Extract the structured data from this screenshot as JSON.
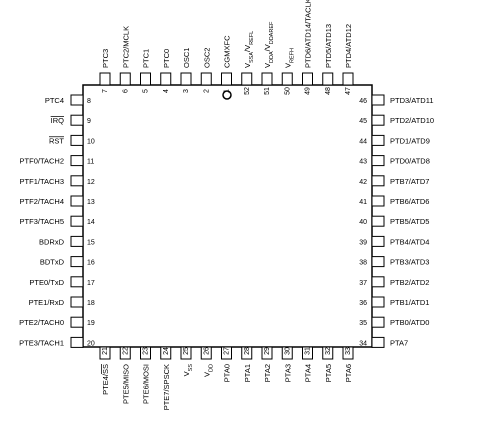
{
  "pins": {
    "top": [
      {
        "number": "7",
        "label": "PTC3"
      },
      {
        "number": "6",
        "label": "PTC2/MCLK"
      },
      {
        "number": "5",
        "label": "PTC1"
      },
      {
        "number": "4",
        "label": "PTC0"
      },
      {
        "number": "3",
        "label": "OSC1"
      },
      {
        "number": "2",
        "label": "OSC2"
      },
      {
        "number": "1",
        "label": "CGMXFC"
      },
      {
        "number": "52",
        "label": [
          {
            "text": "V"
          },
          {
            "text": "SSA",
            "sub": true
          },
          {
            "text": "/V"
          },
          {
            "text": "REFL",
            "sub": true
          }
        ]
      },
      {
        "number": "51",
        "label": [
          {
            "text": "V"
          },
          {
            "text": "DDA",
            "sub": true
          },
          {
            "text": "/V"
          },
          {
            "text": "DDAREF",
            "sub": true
          }
        ]
      },
      {
        "number": "50",
        "label": [
          {
            "text": "V"
          },
          {
            "text": "REFH",
            "sub": true
          }
        ]
      },
      {
        "number": "49",
        "label": "PTD6/ATD14/TACLK"
      },
      {
        "number": "48",
        "label": "PTD5/ATD13"
      },
      {
        "number": "47",
        "label": "PTD4/ATD12"
      }
    ],
    "left": [
      {
        "number": "8",
        "label": "PTC4"
      },
      {
        "number": "9",
        "label": [
          {
            "text": "IRQ",
            "overline": true
          }
        ]
      },
      {
        "number": "10",
        "label": [
          {
            "text": "RST",
            "overline": true
          }
        ]
      },
      {
        "number": "11",
        "label": "PTF0/TACH2"
      },
      {
        "number": "12",
        "label": "PTF1/TACH3"
      },
      {
        "number": "13",
        "label": "PTF2/TACH4"
      },
      {
        "number": "14",
        "label": "PTF3/TACH5"
      },
      {
        "number": "15",
        "label": "BDRxD"
      },
      {
        "number": "16",
        "label": "BDTxD"
      },
      {
        "number": "17",
        "label": "PTE0/TxD"
      },
      {
        "number": "18",
        "label": "PTE1/RxD"
      },
      {
        "number": "19",
        "label": "PTE2/TACH0"
      },
      {
        "number": "20",
        "label": "PTE3/TACH1"
      }
    ],
    "bottom": [
      {
        "number": "21",
        "label": [
          {
            "text": "PTE4/"
          },
          {
            "text": "SS",
            "overline": true
          }
        ]
      },
      {
        "number": "22",
        "label": "PTE5/MISO"
      },
      {
        "number": "23",
        "label": "PTE6/MOSI"
      },
      {
        "number": "24",
        "label": "PTE7/SPSCK"
      },
      {
        "number": "25",
        "label": [
          {
            "text": "V"
          },
          {
            "text": "SS",
            "sub": true
          }
        ]
      },
      {
        "number": "26",
        "label": [
          {
            "text": "V"
          },
          {
            "text": "DD",
            "sub": true
          }
        ]
      },
      {
        "number": "27",
        "label": "PTA0"
      },
      {
        "number": "28",
        "label": "PTA1"
      },
      {
        "number": "29",
        "label": "PTA2"
      },
      {
        "number": "30",
        "label": "PTA3"
      },
      {
        "number": "31",
        "label": "PTA4"
      },
      {
        "number": "32",
        "label": "PTA5"
      },
      {
        "number": "33",
        "label": "PTA6"
      }
    ],
    "right": [
      {
        "number": "46",
        "label": "PTD3/ATD11"
      },
      {
        "number": "45",
        "label": "PTD2/ATD10"
      },
      {
        "number": "44",
        "label": "PTD1/ATD9"
      },
      {
        "number": "43",
        "label": "PTD0/ATD8"
      },
      {
        "number": "42",
        "label": "PTB7/ATD7"
      },
      {
        "number": "41",
        "label": "PTB6/ATD6"
      },
      {
        "number": "40",
        "label": "PTB5/ATD5"
      },
      {
        "number": "39",
        "label": "PTB4/ATD4"
      },
      {
        "number": "38",
        "label": "PTB3/ATD3"
      },
      {
        "number": "37",
        "label": "PTB2/ATD2"
      },
      {
        "number": "36",
        "label": "PTB1/ATD1"
      },
      {
        "number": "35",
        "label": "PTB0/ATD0"
      },
      {
        "number": "34",
        "label": "PTA7"
      }
    ]
  }
}
